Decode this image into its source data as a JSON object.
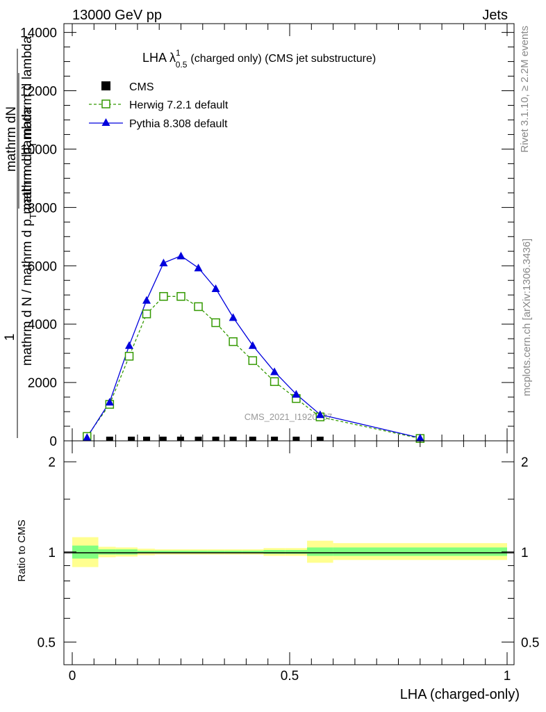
{
  "header": {
    "left": "13000 GeV pp",
    "right": "Jets"
  },
  "side_text": {
    "rivet": "Rivet 3.1.10, ≥ 2.2M events",
    "mcplots": "mcplots.cern.ch [arXiv:1306.3436]"
  },
  "watermark": "CMS_2021_I1920187",
  "colors": {
    "herwig": "#339900",
    "pythia": "#0000dd",
    "band_inner": "#80ff80",
    "band_outer": "#ffff90",
    "data": "#000000"
  },
  "chart_data": [
    {
      "type": "line",
      "title_main": "LHA λ",
      "title_sup": "1",
      "title_sub": "0.5",
      "title_rest": "(charged only) (CMS jet substructure)",
      "ylabel_parts": {
        "prefix": "1",
        "num_a": "mathrm d N / mathrm d p",
        "num_b": "T",
        "num_c": " mathrm d lambda",
        "den_a": "mathrm dN",
        "den_b": "mathrm d p",
        "den_c": "T",
        "den_d": "mathrm d lambda"
      },
      "ylim": [
        0,
        14300
      ],
      "xlim": [
        0,
        1
      ],
      "yticks": [
        0,
        2000,
        4000,
        6000,
        8000,
        10000,
        12000,
        14000
      ],
      "ytick_labels": [
        "0",
        "2000",
        "4000",
        "6000",
        "8000",
        "10000",
        "12000",
        "14000"
      ],
      "legend_position": "top-left",
      "series": [
        {
          "name": "CMS",
          "x": [
            0.086,
            0.136,
            0.171,
            0.209,
            0.249,
            0.29,
            0.33,
            0.37,
            0.415,
            0.465,
            0.515,
            0.57
          ],
          "y": [
            0,
            0,
            0,
            0,
            0,
            0,
            0,
            0,
            0,
            0,
            0,
            0
          ]
        },
        {
          "name": "Herwig 7.2.1 default",
          "x": [
            0.034,
            0.086,
            0.131,
            0.171,
            0.21,
            0.25,
            0.29,
            0.33,
            0.37,
            0.415,
            0.465,
            0.515,
            0.57,
            0.8
          ],
          "y": [
            150,
            1250,
            2900,
            4350,
            4950,
            4950,
            4600,
            4050,
            3400,
            2750,
            2030,
            1450,
            820,
            80
          ]
        },
        {
          "name": "Pythia 8.308 default",
          "x": [
            0.034,
            0.086,
            0.131,
            0.171,
            0.21,
            0.25,
            0.29,
            0.33,
            0.37,
            0.415,
            0.465,
            0.515,
            0.57,
            0.8
          ],
          "y": [
            120,
            1330,
            3270,
            4820,
            6100,
            6340,
            5930,
            5220,
            4230,
            3270,
            2370,
            1600,
            900,
            100
          ]
        }
      ]
    },
    {
      "type": "area",
      "ylabel": "Ratio to CMS",
      "ylim": [
        0.42,
        2.35
      ],
      "log_scale_y": true,
      "yticks": [
        0.5,
        1,
        2
      ],
      "ytick_labels": [
        "0.5",
        "1",
        "2"
      ],
      "xlim": [
        0,
        1
      ],
      "xticks": [
        0,
        0.5,
        1
      ],
      "xtick_labels": [
        "0",
        "0.5",
        "1"
      ],
      "xlabel": "LHA (charged-only)",
      "bands": {
        "edges": [
          0,
          0.06,
          0.1,
          0.15,
          0.19,
          0.23,
          0.27,
          0.31,
          0.35,
          0.39,
          0.44,
          0.49,
          0.54,
          0.6,
          1.0
        ],
        "inner_lo": [
          0.95,
          0.98,
          0.98,
          0.99,
          0.99,
          0.99,
          0.99,
          0.99,
          0.99,
          0.99,
          0.985,
          0.985,
          0.97,
          0.97
        ],
        "inner_hi": [
          1.05,
          1.02,
          1.02,
          1.01,
          1.01,
          1.01,
          1.01,
          1.01,
          1.01,
          1.01,
          1.015,
          1.015,
          1.035,
          1.035
        ],
        "outer_lo": [
          0.89,
          0.96,
          0.965,
          0.975,
          0.98,
          0.98,
          0.98,
          0.98,
          0.98,
          0.98,
          0.97,
          0.97,
          0.92,
          0.94
        ],
        "outer_hi": [
          1.12,
          1.04,
          1.035,
          1.025,
          1.02,
          1.02,
          1.02,
          1.02,
          1.02,
          1.02,
          1.03,
          1.03,
          1.09,
          1.07
        ]
      }
    }
  ]
}
